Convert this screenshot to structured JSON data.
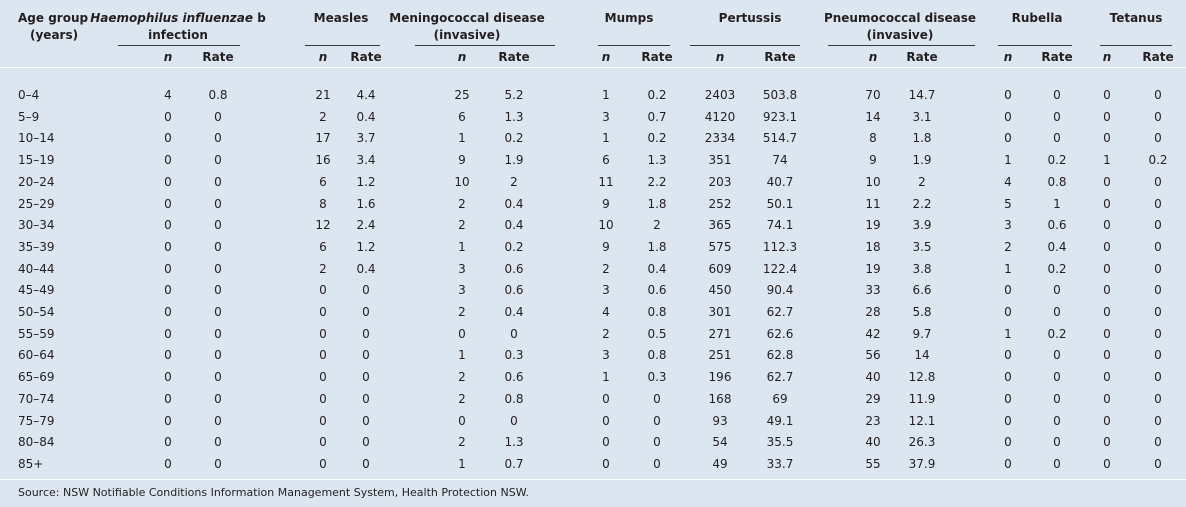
{
  "table": {
    "age_header": [
      "Age group",
      "(years)"
    ],
    "groups": [
      {
        "name": [
          "Haemophilus influenzae",
          "b",
          "infection"
        ]
      },
      {
        "name": [
          "Measles"
        ]
      },
      {
        "name": [
          "Meningococcal disease",
          "(invasive)"
        ]
      },
      {
        "name": [
          "Mumps"
        ]
      },
      {
        "name": [
          "Pertussis"
        ]
      },
      {
        "name": [
          "Pneumococcal disease",
          "(invasive)"
        ]
      },
      {
        "name": [
          "Rubella"
        ]
      },
      {
        "name": [
          "Tetanus"
        ]
      }
    ],
    "sub_headers": [
      "n",
      "Rate"
    ],
    "rows": [
      [
        "0–4",
        4,
        0.8,
        21,
        4.4,
        25,
        5.2,
        1,
        0.2,
        2403,
        503.8,
        70,
        14.7,
        0,
        0,
        0,
        0
      ],
      [
        "5–9",
        0,
        0,
        2,
        0.4,
        6,
        1.3,
        3,
        0.7,
        4120,
        923.1,
        14,
        3.1,
        0,
        0,
        0,
        0
      ],
      [
        "10–14",
        0,
        0,
        17,
        3.7,
        1,
        0.2,
        1,
        0.2,
        2334,
        514.7,
        8,
        1.8,
        0,
        0,
        0,
        0
      ],
      [
        "15–19",
        0,
        0,
        16,
        3.4,
        9,
        1.9,
        6,
        1.3,
        351,
        74,
        9,
        1.9,
        1,
        0.2,
        1,
        0.2
      ],
      [
        "20–24",
        0,
        0,
        6,
        1.2,
        10,
        2,
        11,
        2.2,
        203,
        40.7,
        10,
        2,
        4,
        0.8,
        0,
        0
      ],
      [
        "25–29",
        0,
        0,
        8,
        1.6,
        2,
        0.4,
        9,
        1.8,
        252,
        50.1,
        11,
        2.2,
        5,
        1,
        0,
        0
      ],
      [
        "30–34",
        0,
        0,
        12,
        2.4,
        2,
        0.4,
        10,
        2,
        365,
        74.1,
        19,
        3.9,
        3,
        0.6,
        0,
        0
      ],
      [
        "35–39",
        0,
        0,
        6,
        1.2,
        1,
        0.2,
        9,
        1.8,
        575,
        112.3,
        18,
        3.5,
        2,
        0.4,
        0,
        0
      ],
      [
        "40–44",
        0,
        0,
        2,
        0.4,
        3,
        0.6,
        2,
        0.4,
        609,
        122.4,
        19,
        3.8,
        1,
        0.2,
        0,
        0
      ],
      [
        "45–49",
        0,
        0,
        0,
        0,
        3,
        0.6,
        3,
        0.6,
        450,
        90.4,
        33,
        6.6,
        0,
        0,
        0,
        0
      ],
      [
        "50–54",
        0,
        0,
        0,
        0,
        2,
        0.4,
        4,
        0.8,
        301,
        62.7,
        28,
        5.8,
        0,
        0,
        0,
        0
      ],
      [
        "55–59",
        0,
        0,
        0,
        0,
        0,
        0,
        2,
        0.5,
        271,
        62.6,
        42,
        9.7,
        1,
        0.2,
        0,
        0
      ],
      [
        "60–64",
        0,
        0,
        0,
        0,
        1,
        0.3,
        3,
        0.8,
        251,
        62.8,
        56,
        14,
        0,
        0,
        0,
        0
      ],
      [
        "65–69",
        0,
        0,
        0,
        0,
        2,
        0.6,
        1,
        0.3,
        196,
        62.7,
        40,
        12.8,
        0,
        0,
        0,
        0
      ],
      [
        "70–74",
        0,
        0,
        0,
        0,
        2,
        0.8,
        0,
        0,
        168,
        69,
        29,
        11.9,
        0,
        0,
        0,
        0
      ],
      [
        "75–79",
        0,
        0,
        0,
        0,
        0,
        0,
        0,
        0,
        93,
        49.1,
        23,
        12.1,
        0,
        0,
        0,
        0
      ],
      [
        "80–84",
        0,
        0,
        0,
        0,
        2,
        1.3,
        0,
        0,
        54,
        35.5,
        40,
        26.3,
        0,
        0,
        0,
        0
      ],
      [
        "85+",
        0,
        0,
        0,
        0,
        1,
        0.7,
        0,
        0,
        49,
        33.7,
        55,
        37.9,
        0,
        0,
        0,
        0
      ]
    ],
    "source": "Source: NSW Notifiable Conditions Information Management System, Health Protection NSW."
  }
}
